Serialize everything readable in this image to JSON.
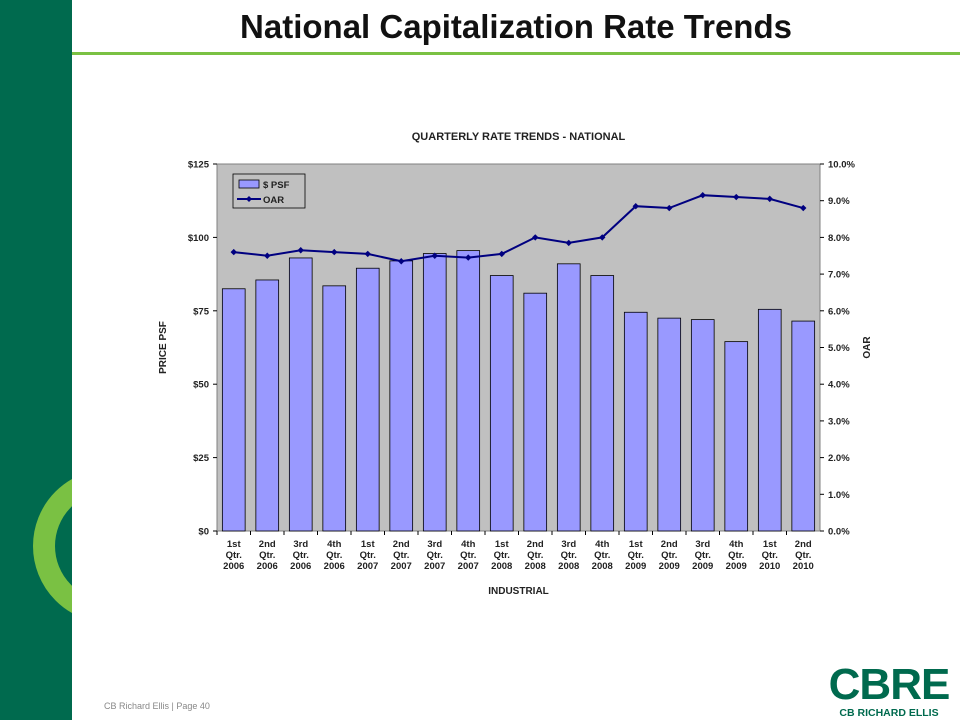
{
  "slide": {
    "title": "National Capitalization Rate Trends",
    "footer": "CB Richard Ellis  |  Page 40",
    "logo_mark": "CBRE",
    "logo_sub": "CB RICHARD ELLIS"
  },
  "colors": {
    "sidebar": "#006a4e",
    "accent_green": "#7ac143",
    "plot_background": "#c0c0c0",
    "bar_fill": "#9999ff",
    "line": "#000080"
  },
  "chart_data": {
    "type": "bar",
    "title": "QUARTERLY RATE TRENDS - NATIONAL",
    "xlabel": "INDUSTRIAL",
    "ylabel": "PRICE PSF",
    "y2label": "OAR",
    "legend_position": "top-left",
    "grid": false,
    "categories": [
      [
        "1st",
        "Qtr.",
        "2006"
      ],
      [
        "2nd",
        "Qtr.",
        "2006"
      ],
      [
        "3rd",
        "Qtr.",
        "2006"
      ],
      [
        "4th",
        "Qtr.",
        "2006"
      ],
      [
        "1st",
        "Qtr.",
        "2007"
      ],
      [
        "2nd",
        "Qtr.",
        "2007"
      ],
      [
        "3rd",
        "Qtr.",
        "2007"
      ],
      [
        "4th",
        "Qtr.",
        "2007"
      ],
      [
        "1st",
        "Qtr.",
        "2008"
      ],
      [
        "2nd",
        "Qtr.",
        "2008"
      ],
      [
        "3rd",
        "Qtr.",
        "2008"
      ],
      [
        "4th",
        "Qtr.",
        "2008"
      ],
      [
        "1st",
        "Qtr.",
        "2009"
      ],
      [
        "2nd",
        "Qtr.",
        "2009"
      ],
      [
        "3rd",
        "Qtr.",
        "2009"
      ],
      [
        "4th",
        "Qtr.",
        "2009"
      ],
      [
        "1st",
        "Qtr.",
        "2010"
      ],
      [
        "2nd",
        "Qtr.",
        "2010"
      ]
    ],
    "ylim": [
      0,
      125
    ],
    "y2lim": [
      0,
      10
    ],
    "y_ticks": [
      "$0",
      "$25",
      "$50",
      "$75",
      "$100",
      "$125"
    ],
    "y2_ticks": [
      "0.0%",
      "1.0%",
      "2.0%",
      "3.0%",
      "4.0%",
      "5.0%",
      "6.0%",
      "7.0%",
      "8.0%",
      "9.0%",
      "10.0%"
    ],
    "series": [
      {
        "name": "$ PSF",
        "type": "bar",
        "axis": "left",
        "values": [
          82.5,
          85.5,
          93,
          83.5,
          89.5,
          92,
          94.5,
          95.5,
          87,
          81,
          91,
          87,
          74.5,
          72.5,
          72,
          64.5,
          75.5,
          71.5
        ]
      },
      {
        "name": "OAR",
        "type": "line",
        "axis": "right",
        "values": [
          7.6,
          7.5,
          7.65,
          7.6,
          7.55,
          7.35,
          7.5,
          7.45,
          7.55,
          8.0,
          7.85,
          8.0,
          8.85,
          8.8,
          9.15,
          9.1,
          9.05,
          8.8
        ]
      }
    ]
  }
}
